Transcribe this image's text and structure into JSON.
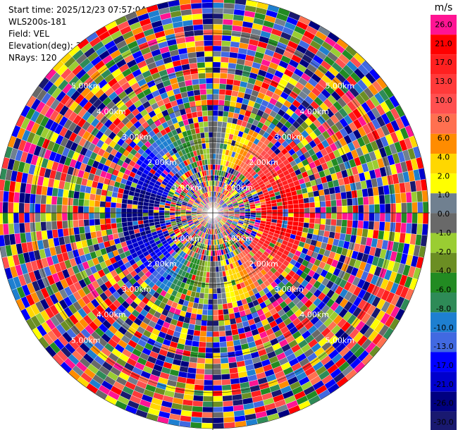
{
  "info": {
    "start_time": "Start time: 2025/12/23 07:57:04",
    "site": "WLS200s-181",
    "field": "Field: VEL",
    "elevation": "Elevation(deg): 35.00",
    "nrays": "NRays: 120"
  },
  "chart_data": {
    "type": "ppi",
    "field": "VEL",
    "elevation_deg": 35.0,
    "n_rays": 120,
    "max_range_km": 6.0,
    "range_rings_km": [
      1,
      2,
      3,
      4,
      5,
      6
    ],
    "ring_labels": [
      "1.00km",
      "2.00km",
      "3.00km",
      "4.00km",
      "5.00km"
    ],
    "colorbar": {
      "unit": "m/s",
      "tick_labels": [
        "26.0",
        "21.0",
        "17.0",
        "13.0",
        "10.0",
        "8.0",
        "6.0",
        "4.0",
        "2.0",
        "1.0",
        "0.0",
        "-1.0",
        "-2.0",
        "-4.0",
        "-6.0",
        "-8.0",
        "-10.0",
        "-13.0",
        "-17.0",
        "-21.0",
        "-26.0",
        "-30.0"
      ],
      "colors": [
        "#ff1493",
        "#ff0000",
        "#ff2020",
        "#ff3a3a",
        "#ff5050",
        "#ff7050",
        "#ff8c00",
        "#ffd700",
        "#ffff00",
        "#708090",
        "#696969",
        "#9acd32",
        "#6b8e23",
        "#228b22",
        "#2e8b57",
        "#1e7fd0",
        "#4169e1",
        "#0000ff",
        "#0000cd",
        "#000080",
        "#191970"
      ]
    }
  }
}
